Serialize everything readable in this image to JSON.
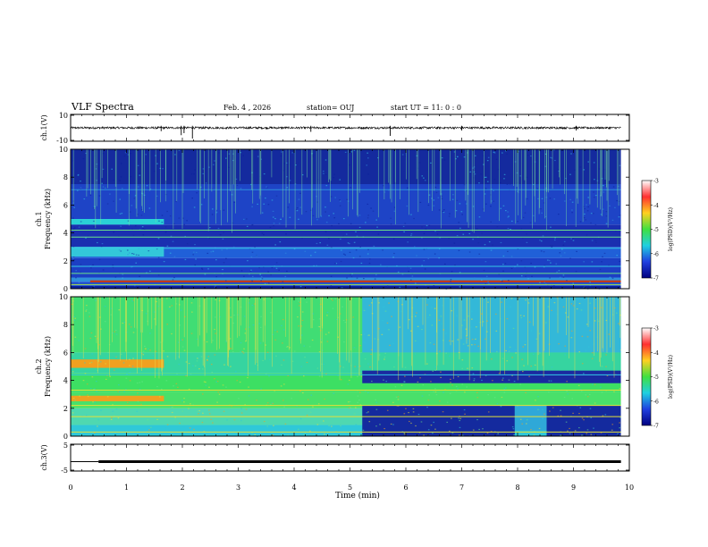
{
  "header": {
    "title": "VLF Spectra",
    "date": "Feb. 4 , 2026",
    "station": "station= OUJ",
    "start": "start  UT  =   11: 0  : 0"
  },
  "chart_data": [
    {
      "type": "line",
      "name": "waveform-ch1",
      "ylabel": "ch.1(V)",
      "ylim": [
        -10,
        10
      ],
      "ytick_labels": [
        "10",
        "-10"
      ],
      "baseline": 0,
      "spikes": [
        {
          "t": 1.62,
          "v": -2.5
        },
        {
          "t": 1.98,
          "v": -5.5
        },
        {
          "t": 2.03,
          "v": -4
        },
        {
          "t": 2.18,
          "v": -8
        },
        {
          "t": 4.3,
          "v": -3
        },
        {
          "t": 5.72,
          "v": -6
        },
        {
          "t": 7.0,
          "v": -2
        },
        {
          "t": 9.05,
          "v": -2
        }
      ]
    },
    {
      "type": "heatmap",
      "name": "spectrogram-ch1",
      "ylabel": "ch.1\nFrequency (kHz)",
      "ylim": [
        0,
        10
      ],
      "ytick_labels": [
        "0",
        "2",
        "4",
        "6",
        "8",
        "10"
      ],
      "colorbar": {
        "label": "log(PSD)(V²/Hz)",
        "range": [
          -7,
          -3
        ],
        "tick_labels": [
          "-3",
          "-4",
          "-5",
          "-6",
          "-7"
        ]
      },
      "bands": [
        {
          "f0": 0,
          "f1": 0.2,
          "c": "#0a1f9a"
        },
        {
          "f0": 0.2,
          "f1": 0.5,
          "c": "#1b4bd0"
        },
        {
          "f0": 0.5,
          "f1": 0.8,
          "c": "#2f8fdc"
        },
        {
          "f0": 0.8,
          "f1": 2.2,
          "c": "#1c3fc4"
        },
        {
          "f0": 2.2,
          "f1": 3.0,
          "c": "#2060d8"
        },
        {
          "f0": 3.0,
          "f1": 4.6,
          "c": "#1a2fb0"
        },
        {
          "f0": 4.6,
          "f1": 7.5,
          "c": "#1e44c6"
        },
        {
          "f0": 7.5,
          "f1": 10,
          "c": "#142a9e"
        }
      ],
      "segments": [
        {
          "t0": 0,
          "t1": 1.67,
          "f0": 4.6,
          "f1": 5.0,
          "c": "#2ad1d6"
        },
        {
          "t0": 0,
          "t1": 1.67,
          "f0": 2.3,
          "f1": 3.0,
          "c": "#33c7d9"
        },
        {
          "t0": 0.35,
          "t1": 9.85,
          "f0": 0.45,
          "f1": 0.6,
          "c": "#c23a1a"
        }
      ],
      "lines": [
        {
          "f": 4.2,
          "c": "#6be38a"
        },
        {
          "f": 3.7,
          "c": "#6be38a"
        },
        {
          "f": 2.9,
          "c": "#36c8e6"
        },
        {
          "f": 1.6,
          "c": "#36c8e6"
        },
        {
          "f": 1.1,
          "c": "#6be38a"
        },
        {
          "f": 0.3,
          "c": "#a8e04a"
        },
        {
          "f": 7.1,
          "c": "#2f8fdc"
        }
      ]
    },
    {
      "type": "heatmap",
      "name": "spectrogram-ch2",
      "ylabel": "ch.2\nFrequency (kHz)",
      "ylim": [
        0,
        10
      ],
      "ytick_labels": [
        "0",
        "2",
        "4",
        "6",
        "8",
        "10"
      ],
      "colorbar": {
        "label": "log(PSD)(V²/Hz)",
        "range": [
          -7,
          -3
        ],
        "tick_labels": [
          "-3",
          "-4",
          "-5",
          "-6",
          "-7"
        ]
      },
      "bands": [
        {
          "f0": 0,
          "f1": 0.8,
          "c": "#2fc8d8"
        },
        {
          "f0": 0.8,
          "f1": 2.0,
          "c": "#4fd8b0"
        },
        {
          "f0": 2.0,
          "f1": 3.2,
          "c": "#49e06a"
        },
        {
          "f0": 3.2,
          "f1": 4.5,
          "c": "#3ddf63"
        },
        {
          "f0": 4.5,
          "f1": 6.0,
          "c": "#36d4a0"
        },
        {
          "f0": 6.0,
          "f1": 10,
          "c": "#40dd74"
        }
      ],
      "segments": [
        {
          "t0": 0,
          "t1": 1.67,
          "f0": 4.9,
          "f1": 5.5,
          "c": "#f0a020"
        },
        {
          "t0": 0,
          "t1": 1.67,
          "f0": 2.5,
          "f1": 2.9,
          "c": "#f0a020"
        },
        {
          "t0": 5.22,
          "t1": 9.85,
          "f0": 6.0,
          "f1": 10,
          "c": "#33b8d8"
        },
        {
          "t0": 5.22,
          "t1": 9.85,
          "f0": 3.8,
          "f1": 4.7,
          "c": "#1a2aa0"
        },
        {
          "t0": 5.22,
          "t1": 7.95,
          "f0": 0,
          "f1": 2.2,
          "c": "#142a9e"
        },
        {
          "t0": 8.52,
          "t1": 9.85,
          "f0": 0,
          "f1": 2.2,
          "c": "#142a9e"
        },
        {
          "t0": 7.95,
          "t1": 8.52,
          "f0": 0.4,
          "f1": 2.2,
          "c": "#2fa8d8"
        }
      ],
      "lines": [
        {
          "f": 3.3,
          "c": "#e3e03a"
        },
        {
          "f": 2.2,
          "c": "#e3e03a"
        },
        {
          "f": 1.4,
          "c": "#e3e03a"
        },
        {
          "f": 0.3,
          "c": "#e3e03a"
        },
        {
          "f": 4.4,
          "c": "#36c8e6"
        }
      ]
    },
    {
      "type": "line",
      "name": "waveform-ch3",
      "ylabel": "ch.3(V)",
      "ylim": [
        -5,
        5
      ],
      "ytick_labels": [
        "5",
        "-5"
      ],
      "series": [
        {
          "x": [
            0,
            0.5
          ],
          "y": [
            -1.5,
            -1.5
          ]
        },
        {
          "x": [
            0.5,
            9.85
          ],
          "y": [
            -1.5,
            -1.5
          ]
        }
      ]
    }
  ],
  "xaxis": {
    "xlabel": "Time  (min)",
    "xlim": [
      0,
      10
    ],
    "tick_labels": [
      "0",
      "1",
      "2",
      "3",
      "4",
      "5",
      "6",
      "7",
      "8",
      "9",
      "10"
    ]
  }
}
